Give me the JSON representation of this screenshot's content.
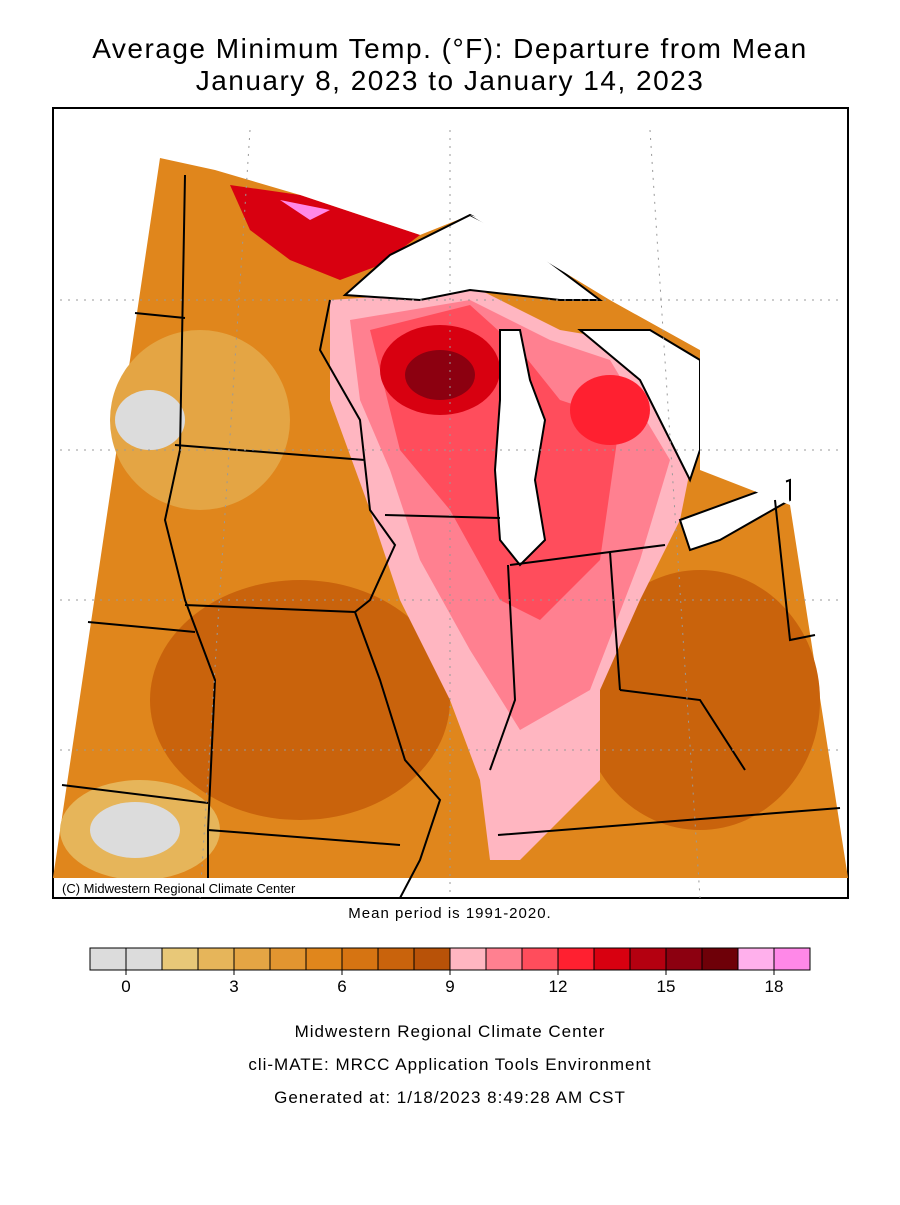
{
  "header": {
    "title": "Average Minimum Temp. (°F): Departure from Mean",
    "subtitle": "January 8, 2023 to January 14, 2023"
  },
  "map": {
    "credit": "(C) Midwestern Regional Climate Center"
  },
  "note": "Mean period is 1991-2020.",
  "legend": {
    "range": [
      -1,
      19
    ],
    "ticks": [
      0,
      3,
      6,
      9,
      12,
      15,
      18
    ],
    "colors": [
      "#dcdcdc",
      "#dcdcdc",
      "#e8c878",
      "#e6b55a",
      "#e4a544",
      "#e29530",
      "#e0861c",
      "#d67412",
      "#c9630c",
      "#b85208",
      "#ffb6c1",
      "#ff8090",
      "#ff4d5c",
      "#ff2030",
      "#d80010",
      "#b40010",
      "#8c0010",
      "#6e0008",
      "#ffb0ec",
      "#ff88e8"
    ]
  },
  "footer": {
    "lines": [
      "Midwestern Regional Climate Center",
      "cli-MATE: MRCC Application Tools Environment",
      "Generated at: 1/18/2023 8:49:28 AM CST"
    ]
  }
}
